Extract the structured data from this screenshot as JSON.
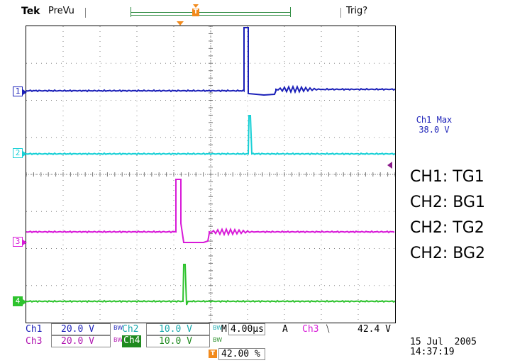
{
  "header": {
    "brand": "Tek",
    "mode": "PreVu",
    "trigger_status": "Trig?",
    "record_marker": "T"
  },
  "channels": [
    {
      "id": "1",
      "color": "#1a1fb8",
      "label": "CH1: TG1"
    },
    {
      "id": "2",
      "color": "#17d0d6",
      "label": "CH2: BG1"
    },
    {
      "id": "3",
      "color": "#d81ad8",
      "label": "CH2: TG2"
    },
    {
      "id": "4",
      "color": "#2ec32e",
      "label": "CH2: BG2"
    }
  ],
  "measurement": {
    "name": "Ch1 Max",
    "value": "38.0 V"
  },
  "settings": {
    "ch1_name": "Ch1",
    "ch1_scale": "20.0 V",
    "ch2_name": "Ch2",
    "ch2_scale": "10.0 V",
    "ch3_name": "Ch3",
    "ch3_scale": "20.0 V",
    "ch4_name": "Ch4",
    "ch4_scale": "10.0 V",
    "bw_mark": "BW",
    "timebase_prefix": "M",
    "timebase": "4.00µs",
    "trigger_coupling": "A",
    "trigger_source": "Ch3",
    "trigger_slope": "⧹",
    "trigger_level": "42.4 V",
    "trigger_position": "42.00 %",
    "trigger_position_marker": "T"
  },
  "timestamp": {
    "date": "15 Jul  2005",
    "time": "14:37:19"
  },
  "colors": {
    "ch1": "#1a1fb8",
    "ch2": "#17d0d6",
    "ch3": "#d81ad8",
    "ch4": "#2ec32e",
    "trigger": "#f28a1c",
    "header_green": "#2b8a3e"
  }
}
